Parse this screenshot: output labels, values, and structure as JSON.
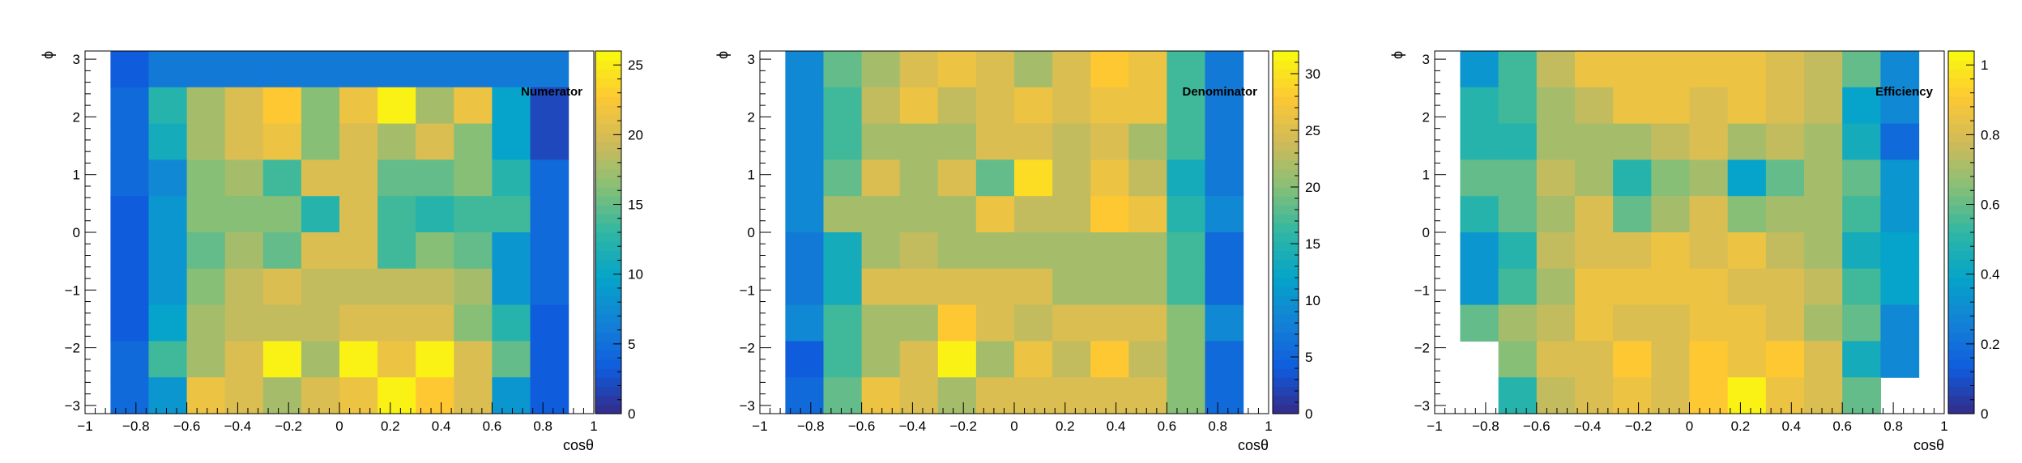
{
  "chart_data": [
    {
      "type": "heatmap",
      "title": "Numerator",
      "xlabel": "cosθ",
      "ylabel": "ϕ",
      "xlim": [
        -1,
        1
      ],
      "ylim": [
        -3.1416,
        3.1416
      ],
      "zlim": [
        0,
        26
      ],
      "x_ticks": [
        -1,
        -0.8,
        -0.6,
        -0.4,
        -0.2,
        0,
        0.2,
        0.4,
        0.6,
        0.8,
        1
      ],
      "x_tick_labels": [
        "−1",
        "−0.8",
        "−0.6",
        "−0.4",
        "−0.2",
        "0",
        "0.2",
        "0.4",
        "0.6",
        "0.8",
        "1"
      ],
      "y_ticks": [
        -3,
        -2,
        -1,
        0,
        1,
        2,
        3
      ],
      "y_tick_labels": [
        "−3",
        "−2",
        "−1",
        "0",
        "1",
        "2",
        "3"
      ],
      "z_ticks": [
        0,
        5,
        10,
        15,
        20,
        25
      ],
      "z_tick_labels": [
        "0",
        "5",
        "10",
        "15",
        "20",
        "25"
      ],
      "x_edges": [
        -0.9,
        -0.75,
        -0.6,
        -0.45,
        -0.3,
        -0.15,
        0,
        0.15,
        0.3,
        0.45,
        0.6,
        0.75,
        0.9
      ],
      "n_y_bins": 10,
      "values": [
        [
          3,
          6,
          6,
          6,
          6,
          6,
          6,
          6,
          6,
          6,
          6,
          6
        ],
        [
          4,
          12,
          17,
          20,
          23,
          16,
          21,
          25,
          18,
          21,
          10,
          2
        ],
        [
          4,
          11,
          17,
          20,
          21,
          16,
          20,
          17,
          20,
          16,
          10,
          2
        ],
        [
          5,
          7,
          16,
          17,
          14,
          20,
          20,
          15,
          15,
          16,
          12,
          4
        ],
        [
          3,
          9,
          16,
          16,
          16,
          12,
          20,
          13,
          12,
          14,
          13,
          4
        ],
        [
          3,
          8,
          15,
          17,
          15,
          20,
          20,
          14,
          16,
          15,
          8,
          4
        ],
        [
          3,
          9,
          16,
          19,
          20,
          19,
          19,
          19,
          19,
          18,
          8,
          5
        ],
        [
          3,
          10,
          17,
          19,
          19,
          19,
          20,
          20,
          20,
          16,
          12,
          3
        ],
        [
          4,
          13,
          18,
          20,
          26,
          17,
          26,
          22,
          26,
          20,
          15,
          3
        ],
        [
          4,
          9,
          21,
          20,
          18,
          20,
          22,
          25,
          23,
          20,
          8,
          3
        ]
      ]
    },
    {
      "type": "heatmap",
      "title": "Denominator",
      "xlabel": "cosθ",
      "ylabel": "ϕ",
      "xlim": [
        -1,
        1
      ],
      "ylim": [
        -3.1416,
        3.1416
      ],
      "zlim": [
        0,
        32
      ],
      "x_ticks": [
        -1,
        -0.8,
        -0.6,
        -0.4,
        -0.2,
        0,
        0.2,
        0.4,
        0.6,
        0.8,
        1
      ],
      "x_tick_labels": [
        "−1",
        "−0.8",
        "−0.6",
        "−0.4",
        "−0.2",
        "0",
        "0.2",
        "0.4",
        "0.6",
        "0.8",
        "1"
      ],
      "y_ticks": [
        -3,
        -2,
        -1,
        0,
        1,
        2,
        3
      ],
      "y_tick_labels": [
        "−3",
        "−2",
        "−1",
        "0",
        "1",
        "2",
        "3"
      ],
      "z_ticks": [
        0,
        5,
        10,
        15,
        20,
        25,
        30
      ],
      "z_tick_labels": [
        "0",
        "5",
        "10",
        "15",
        "20",
        "25",
        "30"
      ],
      "x_edges": [
        -0.9,
        -0.75,
        -0.6,
        -0.45,
        -0.3,
        -0.15,
        0,
        0.15,
        0.3,
        0.45,
        0.6,
        0.75,
        0.9
      ],
      "n_y_bins": 10,
      "values": [
        [
          8,
          18,
          22,
          24,
          27,
          24,
          21,
          25,
          28,
          27,
          16,
          7
        ],
        [
          8,
          17,
          23,
          26,
          23,
          24,
          26,
          25,
          26,
          27,
          16,
          7
        ],
        [
          8,
          17,
          22,
          22,
          22,
          25,
          25,
          23,
          24,
          22,
          16,
          7
        ],
        [
          8,
          19,
          24,
          22,
          24,
          19,
          29,
          23,
          26,
          23,
          14,
          7
        ],
        [
          8,
          21,
          21,
          21,
          22,
          26,
          23,
          23,
          28,
          26,
          15,
          8
        ],
        [
          7,
          14,
          22,
          23,
          21,
          21,
          21,
          22,
          22,
          22,
          16,
          6
        ],
        [
          7,
          14,
          24,
          24,
          24,
          24,
          24,
          22,
          22,
          21,
          16,
          6
        ],
        [
          8,
          16,
          22,
          22,
          28,
          24,
          23,
          24,
          24,
          25,
          20,
          8
        ],
        [
          4,
          17,
          22,
          25,
          31,
          21,
          26,
          23,
          28,
          23,
          20,
          6
        ],
        [
          6,
          18,
          26,
          25,
          21,
          25,
          24,
          24,
          24,
          24,
          20,
          6
        ]
      ]
    },
    {
      "type": "heatmap",
      "title": "Efficiency",
      "xlabel": "cosθ",
      "ylabel": "ϕ",
      "xlim": [
        -1,
        1
      ],
      "ylim": [
        -3.1416,
        3.1416
      ],
      "zlim": [
        0,
        1.04
      ],
      "x_ticks": [
        -1,
        -0.8,
        -0.6,
        -0.4,
        -0.2,
        0,
        0.2,
        0.4,
        0.6,
        0.8,
        1
      ],
      "x_tick_labels": [
        "−1",
        "−0.8",
        "−0.6",
        "−0.4",
        "−0.2",
        "0",
        "0.2",
        "0.4",
        "0.6",
        "0.8",
        "1"
      ],
      "y_ticks": [
        -3,
        -2,
        -1,
        0,
        1,
        2,
        3
      ],
      "y_tick_labels": [
        "−3",
        "−2",
        "−1",
        "0",
        "1",
        "2",
        "3"
      ],
      "z_ticks": [
        0,
        0.2,
        0.4,
        0.6,
        0.8,
        1
      ],
      "z_tick_labels": [
        "0",
        "0.2",
        "0.4",
        "0.6",
        "0.8",
        "1"
      ],
      "x_edges": [
        -0.9,
        -0.75,
        -0.6,
        -0.45,
        -0.3,
        -0.15,
        0,
        0.15,
        0.3,
        0.45,
        0.6,
        0.75,
        0.9
      ],
      "n_y_bins": 10,
      "values": [
        [
          0.33,
          0.55,
          0.77,
          0.87,
          0.85,
          0.85,
          0.85,
          0.85,
          0.8,
          0.77,
          0.6,
          0.3
        ],
        [
          0.5,
          0.55,
          0.72,
          0.77,
          0.84,
          0.84,
          0.82,
          0.87,
          0.8,
          0.77,
          0.4,
          0.3
        ],
        [
          0.5,
          0.5,
          0.72,
          0.72,
          0.72,
          0.76,
          0.8,
          0.72,
          0.75,
          0.72,
          0.45,
          0.2
        ],
        [
          0.6,
          0.6,
          0.75,
          0.72,
          0.5,
          0.65,
          0.72,
          0.4,
          0.6,
          0.7,
          0.6,
          0.33
        ],
        [
          0.5,
          0.6,
          0.72,
          0.8,
          0.6,
          0.72,
          0.8,
          0.65,
          0.72,
          0.7,
          0.55,
          0.33
        ],
        [
          0.33,
          0.5,
          0.75,
          0.8,
          0.8,
          0.85,
          0.8,
          0.87,
          0.76,
          0.7,
          0.45,
          0.4
        ],
        [
          0.33,
          0.55,
          0.7,
          0.85,
          0.85,
          0.85,
          0.85,
          0.8,
          0.8,
          0.75,
          0.55,
          0.4
        ],
        [
          0.6,
          0.7,
          0.77,
          0.87,
          0.8,
          0.8,
          0.87,
          0.85,
          0.8,
          0.72,
          0.6,
          0.3
        ],
        [
          0,
          0.65,
          0.8,
          0.8,
          0.9,
          0.8,
          0.93,
          0.87,
          0.9,
          0.82,
          0.45,
          0.3
        ],
        [
          0,
          0.5,
          0.77,
          0.8,
          0.85,
          0.8,
          0.9,
          1.0,
          0.88,
          0.82,
          0.6,
          0
        ]
      ]
    }
  ]
}
